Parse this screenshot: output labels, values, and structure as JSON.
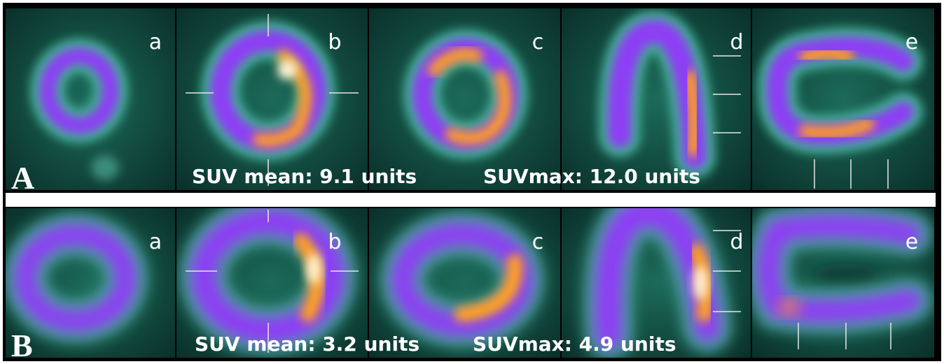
{
  "rows": [
    {
      "label": "A",
      "panels": [
        "a",
        "b",
        "c",
        "d",
        "e"
      ],
      "suv_mean": "SUV mean: 9.1 units",
      "suv_max": "SUVmax: 12.0 units"
    },
    {
      "label": "B",
      "panels": [
        "a",
        "b",
        "c",
        "d",
        "e"
      ],
      "suv_mean": "SUV mean: 3.2 units",
      "suv_max": "SUVmax: 4.9 units"
    }
  ]
}
